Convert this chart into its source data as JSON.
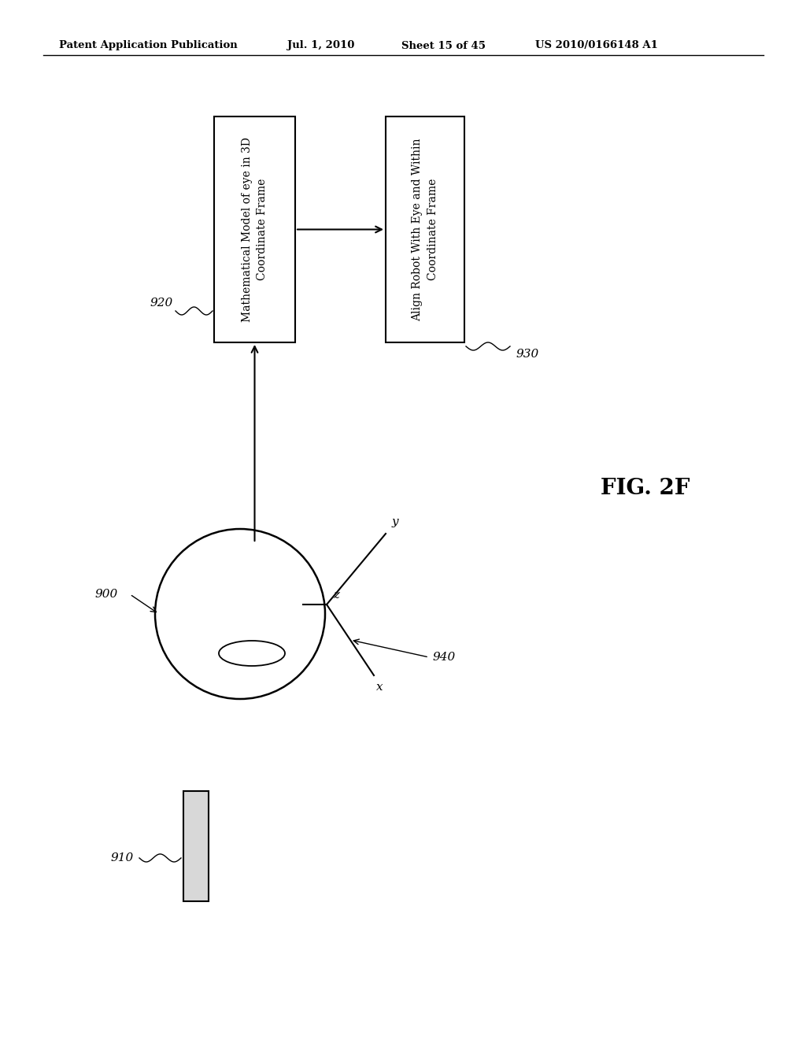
{
  "background_color": "#ffffff",
  "header_text": "Patent Application Publication",
  "header_date": "Jul. 1, 2010",
  "header_sheet": "Sheet 15 of 45",
  "header_patent": "US 2010/0166148 A1",
  "fig_label": "FIG. 2F",
  "box1_label": "Mathematical Model of eye in 3D\nCoordinate Frame",
  "box2_label": "Align Robot With Eye and Within\nCoordinate Frame",
  "label_920": "920",
  "label_930": "930",
  "label_900": "900",
  "label_910": "910",
  "label_940": "940",
  "label_z": "z",
  "label_y": "y",
  "label_x": "x"
}
